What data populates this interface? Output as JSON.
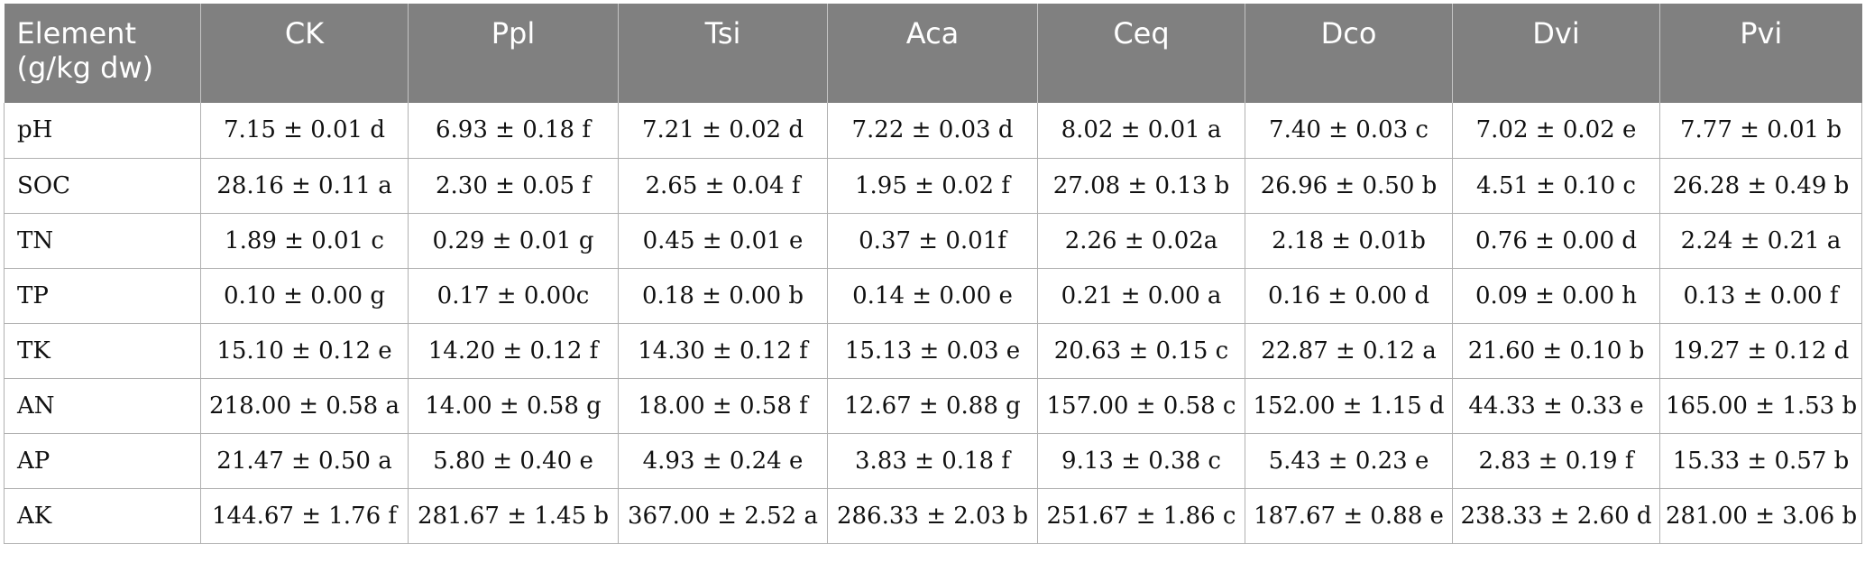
{
  "table": {
    "header_element_line1": "Element",
    "header_element_line2": "(g/kg dw)",
    "columns": [
      "CK",
      "Ppl",
      "Tsi",
      "Aca",
      "Ceq",
      "Dco",
      "Dvi",
      "Pvi"
    ],
    "rows": [
      {
        "label": "pH",
        "cells": [
          "7.15 ± 0.01 d",
          "6.93 ± 0.18 f",
          "7.21 ± 0.02 d",
          "7.22 ± 0.03 d",
          "8.02 ± 0.01 a",
          "7.40 ± 0.03 c",
          "7.02 ± 0.02 e",
          "7.77 ± 0.01 b"
        ]
      },
      {
        "label": "SOC",
        "cells": [
          "28.16 ± 0.11 a",
          "2.30 ± 0.05 f",
          "2.65 ± 0.04 f",
          "1.95 ± 0.02 f",
          "27.08 ± 0.13 b",
          "26.96 ± 0.50 b",
          "4.51 ± 0.10 c",
          "26.28 ± 0.49 b"
        ]
      },
      {
        "label": "TN",
        "cells": [
          "1.89 ± 0.01 c",
          "0.29 ± 0.01 g",
          "0.45 ± 0.01 e",
          "0.37 ± 0.01f",
          "2.26 ± 0.02a",
          "2.18 ± 0.01b",
          "0.76 ± 0.00 d",
          "2.24 ± 0.21 a"
        ]
      },
      {
        "label": "TP",
        "cells": [
          "0.10 ± 0.00 g",
          "0.17 ± 0.00c",
          "0.18 ± 0.00 b",
          "0.14 ± 0.00 e",
          "0.21 ± 0.00 a",
          "0.16 ± 0.00 d",
          "0.09 ± 0.00 h",
          "0.13 ± 0.00 f"
        ]
      },
      {
        "label": "TK",
        "cells": [
          "15.10 ± 0.12 e",
          "14.20 ± 0.12 f",
          "14.30 ± 0.12 f",
          "15.13 ± 0.03 e",
          "20.63 ± 0.15 c",
          "22.87 ± 0.12 a",
          "21.60 ± 0.10 b",
          "19.27 ± 0.12 d"
        ]
      },
      {
        "label": "AN",
        "cells": [
          "218.00 ± 0.58 a",
          "14.00 ± 0.58 g",
          "18.00 ± 0.58 f",
          "12.67 ± 0.88 g",
          "157.00 ± 0.58 c",
          "152.00 ± 1.15 d",
          "44.33 ± 0.33 e",
          "165.00 ± 1.53 b"
        ]
      },
      {
        "label": "AP",
        "cells": [
          "21.47 ± 0.50 a",
          "5.80 ± 0.40 e",
          "4.93 ± 0.24 e",
          "3.83 ± 0.18 f",
          "9.13 ± 0.38 c",
          "5.43 ± 0.23 e",
          "2.83 ± 0.19 f",
          "15.33 ± 0.57 b"
        ]
      },
      {
        "label": "AK",
        "cells": [
          "144.67 ± 1.76 f",
          "281.67 ± 1.45 b",
          "367.00 ± 2.52 a",
          "286.33 ± 2.03 b",
          "251.67 ± 1.86 c",
          "187.67 ± 0.88 e",
          "238.33 ± 2.60 d",
          "281.00 ± 3.06 b"
        ]
      }
    ]
  }
}
